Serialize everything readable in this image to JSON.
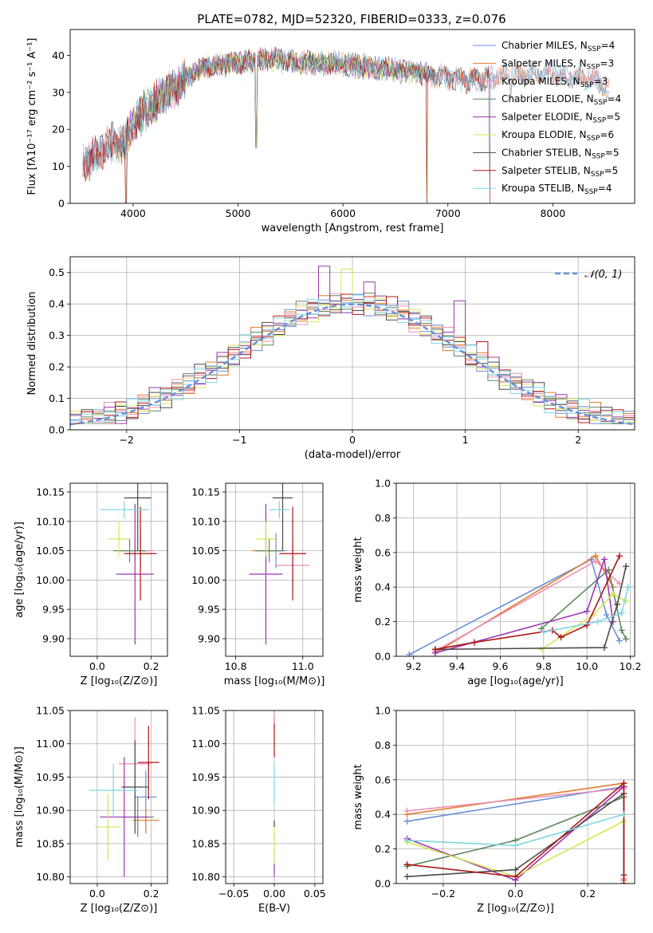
{
  "title": "PLATE=0782, MJD=52320, FIBERID=0333, z=0.076",
  "model_colors": [
    "#6a8fd8",
    "#e07b2d",
    "#ec8fb5",
    "#5e8a5e",
    "#9b36b0",
    "#d4e65a",
    "#4a4a4a",
    "#b01515",
    "#7fd5e0"
  ],
  "chart_data": [
    {
      "id": "spectrum",
      "type": "line",
      "xlabel": "wavelength [Angstrom, rest frame]",
      "ylabel": "Flux [fλ10⁻¹⁷ erg cm⁻² s⁻¹ A⁻¹]",
      "xlim": [
        3400,
        8780
      ],
      "ylim": [
        0,
        47
      ],
      "xticks": [
        4000,
        5000,
        6000,
        7000,
        8000
      ],
      "yticks": [
        0,
        10,
        20,
        30,
        40
      ],
      "grid": false,
      "legend_position": "top-right",
      "continuum_x": [
        3520,
        3600,
        3700,
        3800,
        3900,
        4000,
        4100,
        4200,
        4300,
        4400,
        4500,
        4700,
        5000,
        5300,
        5600,
        5900,
        6200,
        6500,
        6800,
        7000,
        7200,
        7400,
        7700,
        8000,
        8300,
        8450,
        8540
      ],
      "continuum_y": [
        11,
        12,
        15,
        16,
        16,
        21,
        25,
        27,
        30,
        31,
        34,
        37,
        38,
        39,
        38,
        38,
        37,
        36,
        35,
        34,
        33,
        34,
        35,
        35,
        34,
        33,
        30
      ],
      "series": [
        {
          "name": "Chabrier MILES, N_SSP=4",
          "x_start": 3520,
          "x_end": 8540
        },
        {
          "name": "Salpeter MILES, N_SSP=3",
          "x_start": 3520,
          "x_end": 8540
        },
        {
          "name": "Kroupa MILES, N_SSP=3",
          "x_start": 3520,
          "x_end": 8540
        },
        {
          "name": "Chabrier ELODIE, N_SSP=4",
          "x_start": 3900,
          "x_end": 6800
        },
        {
          "name": "Salpeter ELODIE, N_SSP=5",
          "x_start": 3900,
          "x_end": 6800
        },
        {
          "name": "Kroupa ELODIE, N_SSP=6",
          "x_start": 3900,
          "x_end": 6800
        },
        {
          "name": "Chabrier STELIB, N_SSP=5",
          "x_start": 3520,
          "x_end": 7400
        },
        {
          "name": "Salpeter STELIB, N_SSP=5",
          "x_start": 3520,
          "x_end": 7400
        },
        {
          "name": "Kroupa STELIB, N_SSP=4",
          "x_start": 3520,
          "x_end": 8540
        }
      ],
      "dips": [
        {
          "x": 3933,
          "y": 0
        },
        {
          "x": 5175,
          "y": 15
        },
        {
          "x": 6800,
          "y": 0
        },
        {
          "x": 7400,
          "y": 0
        },
        {
          "x": 7600,
          "y": 28
        }
      ]
    },
    {
      "id": "residuals",
      "type": "bar",
      "xlabel": "(data-model)/error",
      "ylabel": "Normed distribution",
      "xlim": [
        -2.5,
        2.5
      ],
      "ylim": [
        0,
        0.55
      ],
      "xticks": [
        -2,
        -1,
        0,
        1,
        2
      ],
      "yticks": [
        0.0,
        0.1,
        0.2,
        0.3,
        0.4,
        0.5
      ],
      "grid": true,
      "legend_position": "top-right",
      "legend": [
        "𝒩(0, 1)"
      ],
      "bin_edges": [
        -2.5,
        2.5
      ],
      "bin_width": 0.1,
      "jitter": [
        0.012,
        -0.008,
        0.02,
        -0.015,
        0.005,
        0.025,
        -0.02,
        0.01,
        -0.005,
        0.03
      ],
      "outliers": [
        {
          "bin": 23,
          "series": 4,
          "value": 0.41
        },
        {
          "bin": 34,
          "series": 4,
          "value": 0.41
        },
        {
          "bin": 22,
          "series": 4,
          "value": 0.52
        },
        {
          "bin": 26,
          "series": 4,
          "value": 0.47
        },
        {
          "bin": 24,
          "series": 5,
          "value": 0.51
        },
        {
          "bin": 36,
          "series": 7,
          "value": 0.28
        }
      ]
    },
    {
      "id": "age-vs-z",
      "type": "scatter",
      "xlabel": "Z [log₁₀(Z/Z⊙)]",
      "ylabel": "age  [log₁₀(age/yr)]",
      "xlim": [
        -0.1,
        0.26
      ],
      "ylim": [
        9.87,
        10.165
      ],
      "xticks": [
        0.0,
        0.2
      ],
      "yticks": [
        9.9,
        9.95,
        10.0,
        10.05,
        10.1,
        10.15
      ],
      "grid": true,
      "points": [
        {
          "series": 0,
          "x": 0.16,
          "y": 10.05,
          "xerr": 0.03,
          "yerr": 0.03
        },
        {
          "series": 1,
          "x": 0.14,
          "y": 10.05,
          "xerr": 0.06,
          "yerr": 0.02
        },
        {
          "series": 2,
          "x": 0.16,
          "y": 10.05,
          "xerr": 0.05,
          "yerr": 0.03
        },
        {
          "series": 3,
          "x": 0.12,
          "y": 10.05,
          "xerr": 0.06,
          "yerr": 0.02
        },
        {
          "series": 4,
          "x": 0.14,
          "y": 10.01,
          "xerr": 0.07,
          "yerr": 0.12
        },
        {
          "series": 5,
          "x": 0.08,
          "y": 10.07,
          "xerr": 0.04,
          "yerr": 0.03
        },
        {
          "series": 6,
          "x": 0.15,
          "y": 10.14,
          "xerr": 0.05,
          "yerr": 0.09
        },
        {
          "series": 7,
          "x": 0.16,
          "y": 10.045,
          "xerr": 0.06,
          "yerr": 0.08
        },
        {
          "series": 8,
          "x": 0.1,
          "y": 10.12,
          "xerr": 0.09,
          "yerr": 0.015
        }
      ]
    },
    {
      "id": "age-vs-mass",
      "type": "scatter",
      "xlabel": "mass [log₁₀(M/M⊙)]",
      "ylabel": "",
      "xlim": [
        10.77,
        11.06
      ],
      "ylim": [
        9.87,
        10.165
      ],
      "xticks": [
        10.8,
        11.0
      ],
      "yticks": [
        9.9,
        9.95,
        10.0,
        10.05,
        10.1,
        10.15
      ],
      "grid": true,
      "points": [
        {
          "series": 0,
          "x": 10.92,
          "y": 10.05,
          "xerr": 0.03,
          "yerr": 0.03
        },
        {
          "series": 1,
          "x": 10.89,
          "y": 10.05,
          "xerr": 0.04,
          "yerr": 0.02
        },
        {
          "series": 2,
          "x": 10.97,
          "y": 10.025,
          "xerr": 0.05,
          "yerr": 0.04
        },
        {
          "series": 3,
          "x": 10.9,
          "y": 10.05,
          "xerr": 0.04,
          "yerr": 0.02
        },
        {
          "series": 4,
          "x": 10.89,
          "y": 10.01,
          "xerr": 0.05,
          "yerr": 0.12
        },
        {
          "series": 5,
          "x": 10.89,
          "y": 10.07,
          "xerr": 0.03,
          "yerr": 0.03
        },
        {
          "series": 6,
          "x": 10.94,
          "y": 10.14,
          "xerr": 0.03,
          "yerr": 0.09
        },
        {
          "series": 7,
          "x": 10.97,
          "y": 10.045,
          "xerr": 0.04,
          "yerr": 0.08
        },
        {
          "series": 8,
          "x": 10.93,
          "y": 10.12,
          "xerr": 0.03,
          "yerr": 0.015
        }
      ]
    },
    {
      "id": "weight-vs-age",
      "type": "line",
      "xlabel": "age  [log₁₀(age/yr)]",
      "ylabel": "mass weight",
      "xlim": [
        9.12,
        10.22
      ],
      "ylim": [
        0,
        1.0
      ],
      "xticks": [
        9.2,
        9.4,
        9.6,
        9.8,
        10.0,
        10.2
      ],
      "yticks": [
        0.0,
        0.2,
        0.4,
        0.6,
        0.8,
        1.0
      ],
      "grid": true,
      "series": [
        {
          "series": 0,
          "x": [
            9.18,
            10.02,
            10.09,
            10.15
          ],
          "y": [
            0.01,
            0.56,
            0.24,
            0.09
          ]
        },
        {
          "series": 1,
          "x": [
            9.3,
            10.04,
            10.12
          ],
          "y": [
            0.02,
            0.58,
            0.4
          ]
        },
        {
          "series": 2,
          "x": [
            9.3,
            10.04,
            10.15
          ],
          "y": [
            0.03,
            0.55,
            0.42
          ]
        },
        {
          "series": 3,
          "x": [
            9.79,
            10.1,
            10.16,
            10.18
          ],
          "y": [
            0.16,
            0.5,
            0.15,
            0.1
          ]
        },
        {
          "series": 4,
          "x": [
            9.3,
            10.0,
            10.08,
            10.12
          ],
          "y": [
            0.02,
            0.26,
            0.56,
            0.2
          ]
        },
        {
          "series": 5,
          "x": [
            9.79,
            10.03,
            10.12,
            10.18
          ],
          "y": [
            0.04,
            0.24,
            0.36,
            0.32
          ]
        },
        {
          "series": 6,
          "x": [
            9.3,
            10.08,
            10.14,
            10.18
          ],
          "y": [
            0.04,
            0.05,
            0.3,
            0.52
          ]
        },
        {
          "series": 7,
          "x": [
            9.3,
            9.48,
            9.84,
            9.88,
            10.0,
            10.15
          ],
          "y": [
            0.04,
            0.08,
            0.15,
            0.11,
            0.18,
            0.58
          ]
        },
        {
          "series": 8,
          "x": [
            9.8,
            10.05,
            10.16,
            10.19
          ],
          "y": [
            0.14,
            0.2,
            0.25,
            0.4
          ]
        }
      ]
    },
    {
      "id": "mass-vs-z",
      "type": "scatter",
      "xlabel": "Z [log₁₀(Z/Z⊙)]",
      "ylabel": "mass [log₁₀(M/M⊙)]",
      "xlim": [
        -0.1,
        0.26
      ],
      "ylim": [
        10.79,
        11.05
      ],
      "xticks": [
        0.0,
        0.2
      ],
      "yticks": [
        10.8,
        10.85,
        10.9,
        10.95,
        11.0,
        11.05
      ],
      "grid": true,
      "points": [
        {
          "series": 0,
          "x": 0.18,
          "y": 10.92,
          "xerr": 0.04,
          "yerr": 0.04
        },
        {
          "series": 1,
          "x": 0.18,
          "y": 10.885,
          "xerr": 0.05,
          "yerr": 0.02
        },
        {
          "series": 2,
          "x": 0.14,
          "y": 10.97,
          "xerr": 0.06,
          "yerr": 0.07
        },
        {
          "series": 3,
          "x": 0.15,
          "y": 10.89,
          "xerr": 0.06,
          "yerr": 0.03
        },
        {
          "series": 4,
          "x": 0.1,
          "y": 10.89,
          "xerr": 0.09,
          "yerr": 0.09
        },
        {
          "series": 5,
          "x": 0.04,
          "y": 10.875,
          "xerr": 0.05,
          "yerr": 0.05
        },
        {
          "series": 6,
          "x": 0.14,
          "y": 10.935,
          "xerr": 0.05,
          "yerr": 0.07
        },
        {
          "series": 7,
          "x": 0.19,
          "y": 10.972,
          "xerr": 0.04,
          "yerr": 0.055
        },
        {
          "series": 8,
          "x": 0.06,
          "y": 10.93,
          "xerr": 0.09,
          "yerr": 0.04
        }
      ]
    },
    {
      "id": "mass-vs-ebv",
      "type": "scatter",
      "xlabel": "E(B-V)",
      "ylabel": "",
      "xlim": [
        -0.06,
        0.06
      ],
      "ylim": [
        10.79,
        11.05
      ],
      "xticks": [
        -0.05,
        0.0,
        0.05
      ],
      "yticks": [
        10.8,
        10.85,
        10.9,
        10.95,
        11.0,
        11.05
      ],
      "grid": true,
      "points": [
        {
          "series": 4,
          "x": 0.0,
          "y": 10.81,
          "xerr": 0,
          "yerr": 0.01
        },
        {
          "series": 5,
          "x": 0.0,
          "y": 10.85,
          "xerr": 0,
          "yerr": 0.03
        },
        {
          "series": 6,
          "x": 0.0,
          "y": 10.88,
          "xerr": 0,
          "yerr": 0.005
        },
        {
          "series": 8,
          "x": 0.0,
          "y": 10.94,
          "xerr": 0,
          "yerr": 0.03
        },
        {
          "series": 7,
          "x": 0.0,
          "y": 11.01,
          "xerr": 0,
          "yerr": 0.03
        },
        {
          "series": 2,
          "x": 0.0,
          "y": 11.04,
          "xerr": 0,
          "yerr": 0.01
        }
      ]
    },
    {
      "id": "weight-vs-z",
      "type": "line",
      "xlabel": "Z [log₁₀(Z/Z⊙)]",
      "ylabel": "mass weight",
      "xlim": [
        -0.33,
        0.33
      ],
      "ylim": [
        0,
        1.0
      ],
      "xticks": [
        -0.2,
        0.0,
        0.2
      ],
      "yticks": [
        0.0,
        0.2,
        0.4,
        0.6,
        0.8,
        1.0
      ],
      "grid": true,
      "series": [
        {
          "series": 0,
          "x": [
            -0.3,
            0.3
          ],
          "y": [
            0.36,
            0.56
          ]
        },
        {
          "series": 1,
          "x": [
            -0.3,
            0.3,
            0.3
          ],
          "y": [
            0.4,
            0.58,
            0.02
          ]
        },
        {
          "series": 2,
          "x": [
            -0.3,
            0.3,
            0.3
          ],
          "y": [
            0.42,
            0.55,
            0.03
          ]
        },
        {
          "series": 3,
          "x": [
            -0.3,
            0.0,
            0.3
          ],
          "y": [
            0.1,
            0.25,
            0.5
          ]
        },
        {
          "series": 4,
          "x": [
            -0.3,
            0.0,
            0.3
          ],
          "y": [
            0.26,
            0.02,
            0.56
          ]
        },
        {
          "series": 5,
          "x": [
            -0.3,
            0.0,
            0.3
          ],
          "y": [
            0.24,
            0.04,
            0.36
          ]
        },
        {
          "series": 6,
          "x": [
            -0.3,
            0.0,
            0.3,
            0.3
          ],
          "y": [
            0.04,
            0.08,
            0.52,
            0.05
          ]
        },
        {
          "series": 7,
          "x": [
            -0.3,
            0.0,
            0.3,
            0.3
          ],
          "y": [
            0.11,
            0.04,
            0.58,
            0.0
          ]
        },
        {
          "series": 8,
          "x": [
            -0.3,
            0.0,
            0.3
          ],
          "y": [
            0.25,
            0.22,
            0.4
          ]
        }
      ]
    }
  ]
}
